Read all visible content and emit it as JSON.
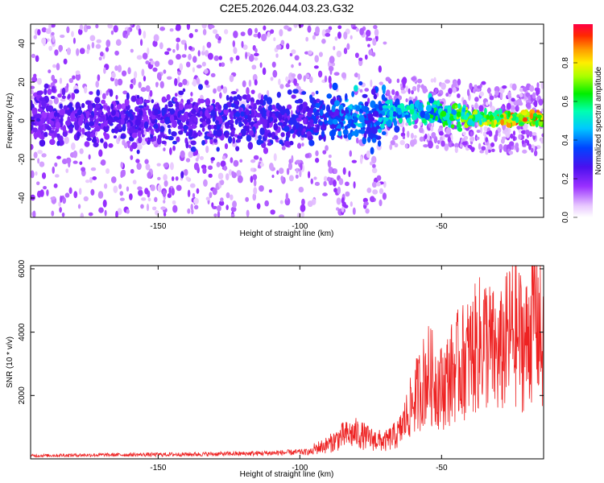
{
  "title": "C2E5.2026.044.03.23.G32",
  "colors": {
    "snr_line": "#ee2222",
    "axes": "#000000",
    "background": "#ffffff"
  },
  "chart_data": [
    {
      "type": "heatmap",
      "xlabel": "Height of straight line (km)",
      "ylabel": "Frequency (Hz)",
      "xlim": [
        -195,
        -14
      ],
      "ylim": [
        -50,
        50
      ],
      "xticks": [
        -150,
        -100,
        -50
      ],
      "yticks": [
        -40,
        -20,
        0,
        20,
        40
      ],
      "colorbar": {
        "label": "Normalized spectral amplitude",
        "range": [
          0,
          1
        ],
        "ticks": [
          "0.0",
          "0.2",
          "0.4",
          "0.6",
          "0.8"
        ]
      },
      "ridge": {
        "description_points_x": [
          -195,
          -150,
          -100,
          -85,
          -80,
          -75,
          -70,
          -60,
          -50,
          -40,
          -30,
          -14
        ],
        "center_freq": [
          0,
          1,
          0,
          2,
          3,
          0,
          4,
          5,
          3,
          2,
          1,
          1
        ],
        "amplitude": [
          0.25,
          0.28,
          0.3,
          0.4,
          0.5,
          0.35,
          0.5,
          0.55,
          0.6,
          0.75,
          0.85,
          0.95
        ]
      }
    },
    {
      "type": "line",
      "xlabel": "Height of straight line (km)",
      "ylabel": "SNR (10 * v/v)",
      "xlim": [
        -195,
        -14
      ],
      "ylim": [
        0,
        6100
      ],
      "xticks": [
        -150,
        -100,
        -50
      ],
      "yticks": [
        2000,
        4000,
        6000
      ],
      "series": [
        {
          "name": "SNR",
          "x": [
            -195,
            -180,
            -160,
            -140,
            -120,
            -105,
            -95,
            -90,
            -85,
            -80,
            -75,
            -70,
            -65,
            -60,
            -55,
            -50,
            -45,
            -40,
            -35,
            -30,
            -25,
            -20,
            -17,
            -14
          ],
          "y": [
            150,
            180,
            200,
            220,
            250,
            300,
            350,
            500,
            800,
            900,
            700,
            600,
            900,
            2000,
            3000,
            2500,
            3200,
            3600,
            4200,
            3500,
            4500,
            4000,
            5600,
            3500
          ]
        }
      ]
    }
  ]
}
